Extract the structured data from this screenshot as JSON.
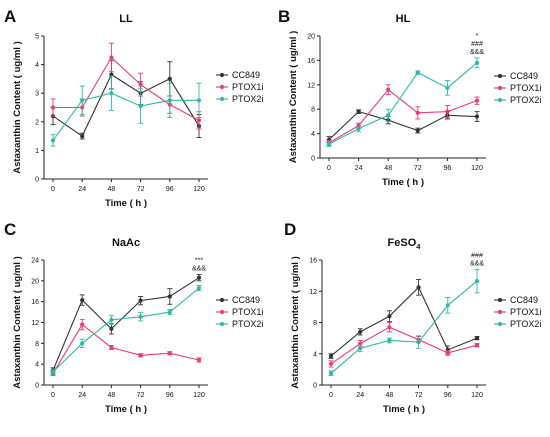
{
  "colors": {
    "CC849": "#333333",
    "PTOX1i": "#ee3a73",
    "PTOX2i": "#2fb8a9"
  },
  "chart_data": [
    {
      "type": "line",
      "letter": "A",
      "title": "LL",
      "title_sub": "",
      "xlabel": "Time ( h )",
      "ylabel": "Astaxanthin Content ( ug/ml )",
      "x": [
        0,
        24,
        48,
        72,
        96,
        120
      ],
      "ylim": [
        0,
        5
      ],
      "yticks": [
        0,
        1,
        2,
        3,
        4,
        5
      ],
      "legend": "top-right",
      "annotation": [],
      "series": [
        {
          "name": "CC849",
          "values": [
            2.2,
            1.5,
            3.65,
            3.0,
            3.5,
            1.85
          ],
          "errors": [
            0.3,
            0.1,
            0.5,
            0.4,
            0.6,
            0.4
          ]
        },
        {
          "name": "PTOX1i",
          "values": [
            2.5,
            2.5,
            4.25,
            3.3,
            2.6,
            2.05
          ],
          "errors": [
            0.3,
            0.3,
            0.5,
            0.4,
            0.3,
            0.3
          ]
        },
        {
          "name": "PTOX2i",
          "values": [
            1.35,
            2.75,
            3.0,
            2.55,
            2.75,
            2.75
          ],
          "errors": [
            0.2,
            0.5,
            0.6,
            0.6,
            0.6,
            0.6
          ]
        }
      ]
    },
    {
      "type": "line",
      "letter": "B",
      "title": "HL",
      "title_sub": "",
      "xlabel": "Time ( h )",
      "ylabel": "Astaxanthin Content ( ug/ml )",
      "x": [
        0,
        24,
        48,
        72,
        96,
        120
      ],
      "ylim": [
        0,
        20
      ],
      "yticks": [
        0,
        4,
        8,
        12,
        16,
        20
      ],
      "legend": "right",
      "annotation": [
        "*",
        "###",
        "&&&"
      ],
      "series": [
        {
          "name": "CC849",
          "values": [
            3.0,
            7.6,
            6.2,
            4.5,
            7.0,
            6.8
          ],
          "errors": [
            0.5,
            0.3,
            0.6,
            0.4,
            0.6,
            0.8
          ]
        },
        {
          "name": "PTOX1i",
          "values": [
            2.5,
            5.3,
            11.2,
            7.4,
            7.6,
            9.4
          ],
          "errors": [
            0.4,
            0.4,
            0.8,
            1.0,
            1.0,
            0.6
          ]
        },
        {
          "name": "PTOX2i",
          "values": [
            2.3,
            4.8,
            7.0,
            14.0,
            11.5,
            15.6
          ],
          "errors": [
            0.4,
            0.5,
            1.0,
            0.3,
            1.2,
            0.8
          ]
        }
      ]
    },
    {
      "type": "line",
      "letter": "C",
      "title": "NaAc",
      "title_sub": "",
      "xlabel": "Time ( h )",
      "ylabel": "Astaxanthin Content ( ug/ml )",
      "x": [
        0,
        24,
        48,
        72,
        96,
        120
      ],
      "ylim": [
        0,
        24
      ],
      "yticks": [
        0,
        4,
        8,
        12,
        16,
        20,
        24
      ],
      "legend": "right",
      "annotation": [
        "***",
        "&&&"
      ],
      "series": [
        {
          "name": "CC849",
          "values": [
            2.8,
            16.3,
            10.8,
            16.2,
            17.0,
            20.6
          ],
          "errors": [
            0.5,
            1.0,
            1.0,
            0.8,
            1.5,
            0.6
          ]
        },
        {
          "name": "PTOX1i",
          "values": [
            2.2,
            11.6,
            7.2,
            5.7,
            6.1,
            4.8
          ],
          "errors": [
            0.4,
            1.0,
            0.4,
            0.3,
            0.3,
            0.4
          ]
        },
        {
          "name": "PTOX2i",
          "values": [
            2.5,
            8.0,
            12.5,
            13.1,
            14.0,
            18.6
          ],
          "errors": [
            0.5,
            0.8,
            0.8,
            0.8,
            0.5,
            0.5
          ]
        }
      ]
    },
    {
      "type": "line",
      "letter": "D",
      "title": "FeSO",
      "title_sub": "4",
      "xlabel": "Time ( h )",
      "ylabel": "Astaxanthin Content ( ug/ml )",
      "x": [
        0,
        24,
        48,
        72,
        96,
        120
      ],
      "ylim": [
        0,
        16
      ],
      "yticks": [
        0,
        4,
        8,
        12,
        16
      ],
      "legend": "right",
      "annotation": [
        "###",
        "&&&"
      ],
      "series": [
        {
          "name": "CC849",
          "values": [
            3.7,
            6.8,
            8.8,
            12.5,
            4.5,
            6.0
          ],
          "errors": [
            0.3,
            0.4,
            0.7,
            1.0,
            0.5,
            0.2
          ]
        },
        {
          "name": "PTOX1i",
          "values": [
            2.7,
            5.3,
            7.4,
            5.8,
            4.1,
            5.1
          ],
          "errors": [
            0.4,
            0.4,
            0.6,
            0.4,
            0.3,
            0.2
          ]
        },
        {
          "name": "PTOX2i",
          "values": [
            1.5,
            4.7,
            5.7,
            5.5,
            10.2,
            13.3
          ],
          "errors": [
            0.3,
            0.4,
            0.3,
            0.8,
            1.0,
            1.5
          ]
        }
      ]
    }
  ]
}
